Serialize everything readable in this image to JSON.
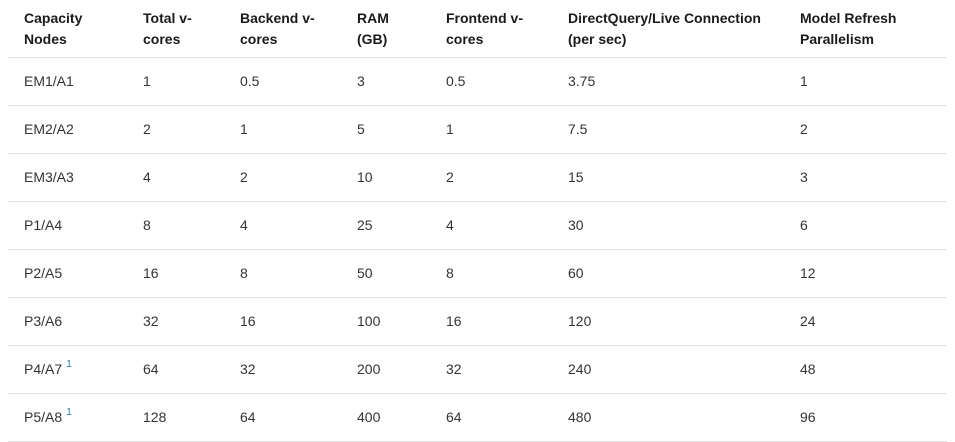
{
  "table": {
    "columns": [
      {
        "id": "capacity-nodes",
        "label": "Capacity\nNodes"
      },
      {
        "id": "total-v-cores",
        "label": "Total v-\ncores"
      },
      {
        "id": "backend-v-cores",
        "label": "Backend v-\ncores"
      },
      {
        "id": "ram-gb",
        "label": "RAM\n(GB)"
      },
      {
        "id": "frontend-v-cores",
        "label": "Frontend v-\ncores"
      },
      {
        "id": "directquery-live-connection",
        "label": "DirectQuery/Live Connection\n(per sec)"
      },
      {
        "id": "model-refresh-parallelism",
        "label": "Model Refresh\nParallelism"
      }
    ],
    "rows": [
      {
        "capacity_node": "EM1/A1",
        "footnote": "",
        "values": [
          "1",
          "0.5",
          "3",
          "0.5",
          "3.75",
          "1"
        ]
      },
      {
        "capacity_node": "EM2/A2",
        "footnote": "",
        "values": [
          "2",
          "1",
          "5",
          "1",
          "7.5",
          "2"
        ]
      },
      {
        "capacity_node": "EM3/A3",
        "footnote": "",
        "values": [
          "4",
          "2",
          "10",
          "2",
          "15",
          "3"
        ]
      },
      {
        "capacity_node": "P1/A4",
        "footnote": "",
        "values": [
          "8",
          "4",
          "25",
          "4",
          "30",
          "6"
        ]
      },
      {
        "capacity_node": "P2/A5",
        "footnote": "",
        "values": [
          "16",
          "8",
          "50",
          "8",
          "60",
          "12"
        ]
      },
      {
        "capacity_node": "P3/A6",
        "footnote": "",
        "values": [
          "32",
          "16",
          "100",
          "16",
          "120",
          "24"
        ]
      },
      {
        "capacity_node": "P4/A7",
        "footnote": "1",
        "values": [
          "64",
          "32",
          "200",
          "32",
          "240",
          "48"
        ]
      },
      {
        "capacity_node": "P5/A8",
        "footnote": "1",
        "values": [
          "128",
          "64",
          "400",
          "64",
          "480",
          "96"
        ]
      }
    ]
  },
  "colors": {
    "header_text": "#1a1a1a",
    "body_text": "#333333",
    "border": "#e0e0e0",
    "footnote_link": "#2e7cc4",
    "background": "#ffffff"
  }
}
